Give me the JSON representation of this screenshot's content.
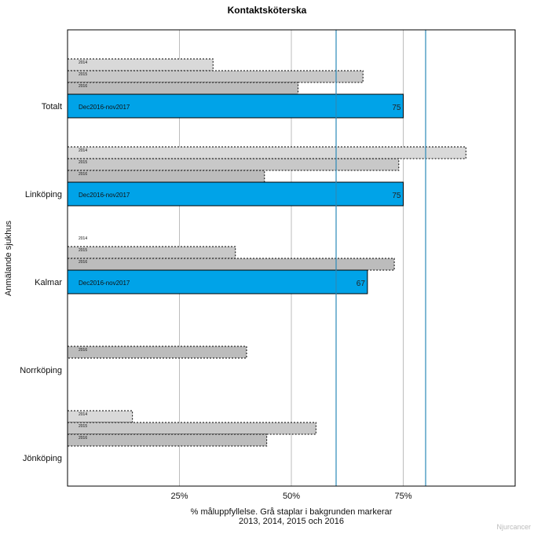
{
  "chart_data": {
    "type": "bar",
    "orientation": "horizontal",
    "title": "Kontaktsköterska",
    "ylabel": "Anmälande sjukhus",
    "xlabel_lines": [
      "% måluppfyllelse. Grå staplar i bakgrunden markerar",
      "2013, 2014, 2015 och 2016"
    ],
    "xlim": [
      0,
      100
    ],
    "xticks": [
      25,
      50,
      75
    ],
    "xtick_labels": [
      "25%",
      "50%",
      "75%"
    ],
    "grid": true,
    "reference_lines": [
      60,
      80
    ],
    "categories": [
      "Totalt",
      "Linköping",
      "Kalmar",
      "Norrköping",
      "Jönköping"
    ],
    "background_series": [
      {
        "name": "2014",
        "values": [
          32.5,
          89,
          0,
          null,
          14.5
        ]
      },
      {
        "name": "2015",
        "values": [
          66,
          74,
          37.5,
          null,
          55.5
        ]
      },
      {
        "name": "2016",
        "values": [
          51.5,
          44,
          73,
          40,
          44.5
        ]
      }
    ],
    "main_series": {
      "name": "Dec2016-nov2017",
      "values": [
        75,
        75,
        67,
        null,
        null
      ],
      "labels": [
        "75",
        "75",
        "67",
        "",
        ""
      ]
    },
    "watermark": "Njurcancer",
    "colors": {
      "main": "#00a3e8",
      "bg_2014": "#d9d9d9",
      "bg_2015": "#c8c8c8",
      "bg_2016": "#bcbcbc",
      "grid": "#bdbdbd",
      "reference": "#2b8ab8"
    }
  }
}
